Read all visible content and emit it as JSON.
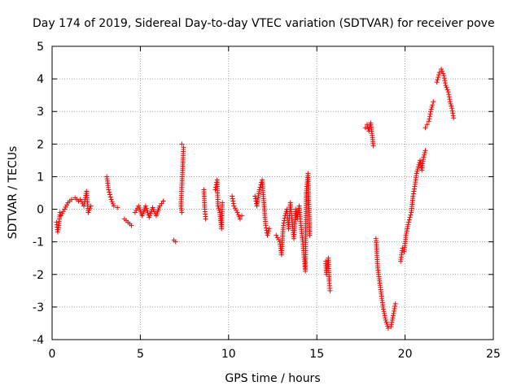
{
  "chart_data": {
    "type": "scatter",
    "title": "Day 174 of 2019, Sidereal Day-to-day VTEC variation (SDTVAR) for receiver pove",
    "xlabel": "GPS time / hours",
    "ylabel": "SDTVAR / TECUs",
    "xlim": [
      0,
      25
    ],
    "ylim": [
      -4,
      5
    ],
    "xticks": [
      0,
      5,
      10,
      15,
      20,
      25
    ],
    "yticks": [
      -4,
      -3,
      -2,
      -1,
      0,
      1,
      2,
      3,
      4,
      5
    ],
    "grid": true,
    "marker": "+",
    "colors": {
      "marker": "#ff0000",
      "grid": "#a0a0a0",
      "axis": "#000000"
    },
    "segments": [
      {
        "x0": 0.25,
        "x1": 0.45,
        "points": [
          [
            0.25,
            -0.4
          ],
          [
            0.32,
            -0.7
          ],
          [
            0.38,
            -0.5
          ],
          [
            0.45,
            -0.1
          ]
        ]
      },
      {
        "x0": 0.45,
        "x1": 1.5,
        "points": [
          [
            0.5,
            -0.2
          ],
          [
            0.7,
            0.0
          ],
          [
            0.9,
            0.2
          ],
          [
            1.1,
            0.3
          ],
          [
            1.3,
            0.35
          ],
          [
            1.5,
            0.25
          ]
        ]
      },
      {
        "x0": 1.5,
        "x1": 2.3,
        "points": [
          [
            1.6,
            0.3
          ],
          [
            1.8,
            0.1
          ],
          [
            1.95,
            0.55
          ],
          [
            2.05,
            -0.1
          ],
          [
            2.2,
            0.1
          ]
        ]
      },
      {
        "x0": 3.1,
        "x1": 3.8,
        "points": [
          [
            3.1,
            1.0
          ],
          [
            3.2,
            0.6
          ],
          [
            3.35,
            0.3
          ],
          [
            3.5,
            0.1
          ],
          [
            3.7,
            0.05
          ]
        ]
      },
      {
        "x0": 4.1,
        "x1": 4.5,
        "points": [
          [
            4.1,
            -0.3
          ],
          [
            4.3,
            -0.4
          ],
          [
            4.5,
            -0.5
          ]
        ]
      },
      {
        "x0": 4.6,
        "x1": 6.3,
        "points": [
          [
            4.7,
            -0.1
          ],
          [
            4.9,
            0.1
          ],
          [
            5.1,
            -0.2
          ],
          [
            5.3,
            0.1
          ],
          [
            5.5,
            -0.25
          ],
          [
            5.7,
            0.05
          ],
          [
            5.9,
            -0.2
          ],
          [
            6.1,
            0.1
          ],
          [
            6.3,
            0.25
          ]
        ]
      },
      {
        "x0": 6.9,
        "x1": 7.0,
        "points": [
          [
            6.9,
            -0.95
          ],
          [
            7.0,
            -1.0
          ]
        ]
      },
      {
        "x0": 7.3,
        "x1": 7.5,
        "points": [
          [
            7.35,
            2.0
          ],
          [
            7.45,
            1.9
          ],
          [
            7.3,
            0.1
          ],
          [
            7.35,
            -0.1
          ]
        ]
      },
      {
        "x0": 8.6,
        "x1": 8.8,
        "points": [
          [
            8.6,
            0.6
          ],
          [
            8.65,
            0.0
          ],
          [
            8.7,
            -0.3
          ]
        ]
      },
      {
        "x0": 9.2,
        "x1": 9.7,
        "points": [
          [
            9.25,
            0.6
          ],
          [
            9.35,
            0.9
          ],
          [
            9.4,
            0.1
          ],
          [
            9.5,
            -0.1
          ],
          [
            9.6,
            -0.6
          ],
          [
            9.65,
            0.2
          ]
        ]
      },
      {
        "x0": 10.1,
        "x1": 10.8,
        "points": [
          [
            10.2,
            0.4
          ],
          [
            10.3,
            0.1
          ],
          [
            10.5,
            -0.1
          ],
          [
            10.65,
            -0.3
          ],
          [
            10.75,
            -0.2
          ]
        ]
      },
      {
        "x0": 11.3,
        "x1": 12.3,
        "points": [
          [
            11.5,
            0.4
          ],
          [
            11.6,
            0.1
          ],
          [
            11.75,
            0.6
          ],
          [
            11.9,
            0.9
          ],
          [
            12.0,
            0.2
          ],
          [
            12.1,
            -0.5
          ],
          [
            12.2,
            -0.8
          ],
          [
            12.3,
            -0.6
          ]
        ]
      },
      {
        "x0": 12.6,
        "x1": 14.6,
        "points": [
          [
            12.7,
            -0.8
          ],
          [
            12.9,
            -1.0
          ],
          [
            13.0,
            -1.4
          ],
          [
            13.1,
            -0.5
          ],
          [
            13.2,
            -0.2
          ],
          [
            13.3,
            0.0
          ],
          [
            13.4,
            -0.6
          ],
          [
            13.5,
            0.2
          ],
          [
            13.6,
            -0.4
          ],
          [
            13.7,
            -0.9
          ],
          [
            13.8,
            0.0
          ],
          [
            13.9,
            -0.3
          ],
          [
            14.0,
            0.1
          ],
          [
            14.1,
            -0.5
          ],
          [
            14.2,
            -1.0
          ],
          [
            14.3,
            -1.6
          ],
          [
            14.35,
            -1.9
          ],
          [
            14.4,
            0.5
          ],
          [
            14.5,
            1.1
          ],
          [
            14.6,
            -0.8
          ]
        ]
      },
      {
        "x0": 15.4,
        "x1": 15.8,
        "points": [
          [
            15.5,
            -1.6
          ],
          [
            15.55,
            -2.0
          ],
          [
            15.65,
            -1.5
          ],
          [
            15.7,
            -2.2
          ],
          [
            15.75,
            -2.5
          ]
        ]
      },
      {
        "x0": 17.7,
        "x1": 18.2,
        "points": [
          [
            17.75,
            2.5
          ],
          [
            17.85,
            2.6
          ],
          [
            17.95,
            2.4
          ],
          [
            18.05,
            2.65
          ],
          [
            18.15,
            2.2
          ],
          [
            18.2,
            1.95
          ]
        ]
      },
      {
        "x0": 18.3,
        "x1": 19.5,
        "points": [
          [
            18.35,
            -0.9
          ],
          [
            18.45,
            -1.8
          ],
          [
            18.6,
            -2.4
          ],
          [
            18.75,
            -3.0
          ],
          [
            18.9,
            -3.4
          ],
          [
            19.05,
            -3.65
          ],
          [
            19.2,
            -3.6
          ],
          [
            19.35,
            -3.2
          ],
          [
            19.45,
            -2.9
          ]
        ]
      },
      {
        "x0": 19.7,
        "x1": 21.2,
        "points": [
          [
            19.75,
            -1.6
          ],
          [
            19.85,
            -1.2
          ],
          [
            19.95,
            -1.3
          ],
          [
            20.05,
            -0.8
          ],
          [
            20.2,
            -0.4
          ],
          [
            20.35,
            -0.1
          ],
          [
            20.45,
            0.4
          ],
          [
            20.55,
            0.7
          ],
          [
            20.65,
            1.1
          ],
          [
            20.75,
            1.3
          ],
          [
            20.85,
            1.5
          ],
          [
            20.95,
            1.2
          ],
          [
            21.05,
            1.6
          ],
          [
            21.15,
            1.8
          ]
        ]
      },
      {
        "x0": 21.1,
        "x1": 21.6,
        "points": [
          [
            21.15,
            2.5
          ],
          [
            21.25,
            2.6
          ],
          [
            21.35,
            2.7
          ],
          [
            21.45,
            3.0
          ],
          [
            21.55,
            3.2
          ],
          [
            21.6,
            3.3
          ]
        ]
      },
      {
        "x0": 21.7,
        "x1": 22.8,
        "points": [
          [
            21.8,
            3.9
          ],
          [
            21.95,
            4.2
          ],
          [
            22.05,
            4.3
          ],
          [
            22.2,
            4.1
          ],
          [
            22.3,
            3.8
          ],
          [
            22.45,
            3.6
          ],
          [
            22.55,
            3.3
          ],
          [
            22.65,
            3.1
          ],
          [
            22.75,
            2.8
          ]
        ]
      }
    ]
  }
}
